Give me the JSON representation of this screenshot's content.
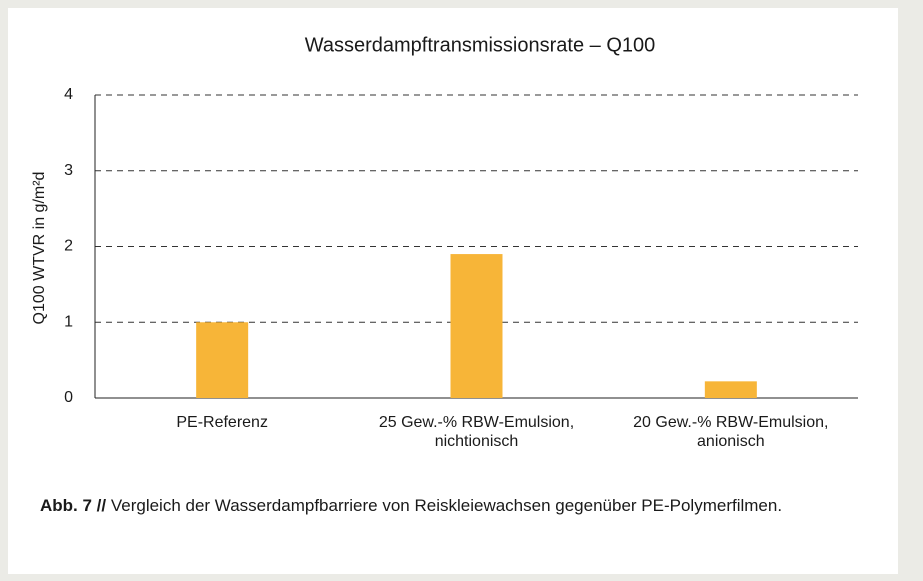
{
  "chart_data": {
    "type": "bar",
    "title": "Wasserdampftransmissionsrate – Q100",
    "y_label": "Q100 WTVR  in g/m²d",
    "categories": [
      [
        "PE-Referenz"
      ],
      [
        "25 Gew.-% RBW-Emulsion,",
        "nichtionisch"
      ],
      [
        "20 Gew.-% RBW-Emulsion,",
        "anionisch"
      ]
    ],
    "values": [
      1.0,
      1.9,
      0.22
    ],
    "color": "#f7b538",
    "ylim": [
      0,
      4
    ],
    "yticks": [
      0,
      1,
      2,
      3,
      4
    ],
    "grid": true
  },
  "caption": {
    "label": "Abb. 7 //",
    "text": "Vergleich der Wasserdampfbarriere von Reiskleiewachsen gegenüber PE-Polymerfilmen."
  }
}
